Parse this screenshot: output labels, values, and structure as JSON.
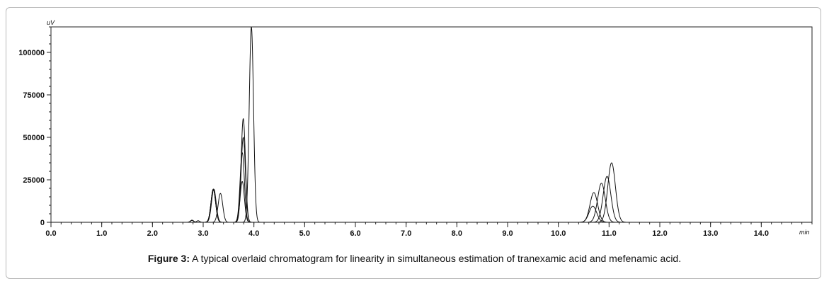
{
  "chart_data": {
    "type": "line",
    "title": "",
    "xlabel": "",
    "ylabel": "",
    "x_unit": "min",
    "y_unit": "uV",
    "xlim": [
      0,
      15.0
    ],
    "ylim": [
      0,
      115000
    ],
    "x_ticks": [
      "0.0",
      "1.0",
      "2.0",
      "3.0",
      "4.0",
      "5.0",
      "6.0",
      "7.0",
      "8.0",
      "9.0",
      "10.0",
      "11.0",
      "12.0",
      "13.0",
      "14.0"
    ],
    "y_ticks": [
      "0",
      "25000",
      "50000",
      "75000",
      "100000"
    ],
    "grid": false,
    "legend": "none",
    "line_color": "#111111",
    "series": [
      {
        "peaks": [
          {
            "rt": 2.78,
            "height": 1200
          },
          {
            "rt": 3.2,
            "height": 19500
          },
          {
            "rt": 3.77,
            "height": 24000
          },
          {
            "rt": 10.68,
            "height": 9500
          }
        ]
      },
      {
        "peaks": [
          {
            "rt": 2.78,
            "height": 1200
          },
          {
            "rt": 3.2,
            "height": 19500
          },
          {
            "rt": 3.77,
            "height": 41000
          },
          {
            "rt": 10.7,
            "height": 17500
          }
        ]
      },
      {
        "peaks": [
          {
            "rt": 2.78,
            "height": 1200
          },
          {
            "rt": 3.2,
            "height": 19500
          },
          {
            "rt": 3.79,
            "height": 50000
          },
          {
            "rt": 10.85,
            "height": 23000
          }
        ]
      },
      {
        "peaks": [
          {
            "rt": 2.78,
            "height": 1200
          },
          {
            "rt": 3.21,
            "height": 19500
          },
          {
            "rt": 3.79,
            "height": 61000
          },
          {
            "rt": 10.96,
            "height": 27000
          }
        ]
      },
      {
        "peaks": [
          {
            "rt": 2.9,
            "height": 900
          },
          {
            "rt": 3.34,
            "height": 17000
          },
          {
            "rt": 3.95,
            "height": 115000
          },
          {
            "rt": 11.05,
            "height": 35000
          }
        ]
      }
    ]
  },
  "caption": {
    "label": "Figure 3:",
    "text": " A typical overlaid chromatogram for linearity in simultaneous estimation of tranexamic acid and mefenamic acid."
  }
}
